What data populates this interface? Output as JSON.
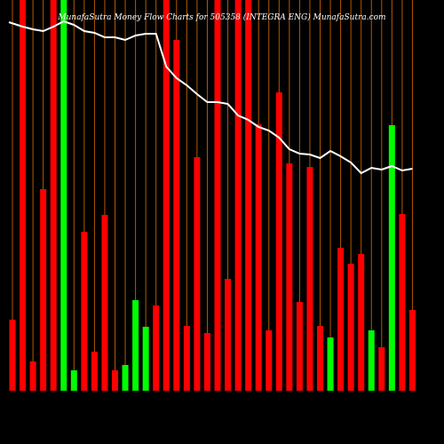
{
  "chart_data": {
    "type": "bar",
    "title": "MunafaSutra Money Flow Charts for 505358 (INTEGRA ENG) MunafaSutra.com",
    "categories": [
      null,
      null,
      null,
      null,
      null,
      null,
      null,
      null,
      null,
      null,
      null,
      null,
      null,
      null,
      null,
      null,
      null,
      null,
      null,
      null,
      null,
      null,
      null,
      null,
      null,
      null,
      null,
      null,
      null,
      null,
      null,
      null,
      null,
      null,
      null,
      null,
      null,
      null,
      null,
      null
    ],
    "values": [
      80,
      440,
      33,
      227,
      440,
      440,
      23,
      179,
      44,
      198,
      23,
      29,
      102,
      72,
      96,
      440,
      395,
      73,
      263,
      65,
      440,
      126,
      440,
      440,
      300,
      68,
      336,
      256,
      100,
      252,
      73,
      60,
      161,
      143,
      154,
      68,
      49,
      299,
      199,
      91
    ],
    "colors": [
      "#ff0000",
      "#ff0000",
      "#ff0000",
      "#ff0000",
      "#ff0000",
      "#00ff00",
      "#00ff00",
      "#ff0000",
      "#ff0000",
      "#ff0000",
      "#ff0000",
      "#00ff00",
      "#00ff00",
      "#00ff00",
      "#ff0000",
      "#ff0000",
      "#ff0000",
      "#ff0000",
      "#ff0000",
      "#ff0000",
      "#ff0000",
      "#ff0000",
      "#ff0000",
      "#ff0000",
      "#ff0000",
      "#ff0000",
      "#ff0000",
      "#ff0000",
      "#ff0000",
      "#ff0000",
      "#ff0000",
      "#00ff00",
      "#ff0000",
      "#ff0000",
      "#ff0000",
      "#00ff00",
      "#ff0000",
      "#00ff00",
      "#ff0000",
      "#ff0000"
    ],
    "line_values": [
      415,
      410,
      407,
      405,
      410,
      416,
      412,
      405,
      403,
      398,
      398,
      395,
      400,
      402,
      402,
      365,
      352,
      344,
      334,
      325,
      325,
      323,
      310,
      305,
      297,
      293,
      285,
      272,
      267,
      266,
      262,
      270,
      264,
      257,
      245,
      251,
      249,
      253,
      248,
      250
    ],
    "line_color": "#ffffff",
    "grid_color": "#b35900",
    "ylim": [
      0,
      440
    ]
  }
}
